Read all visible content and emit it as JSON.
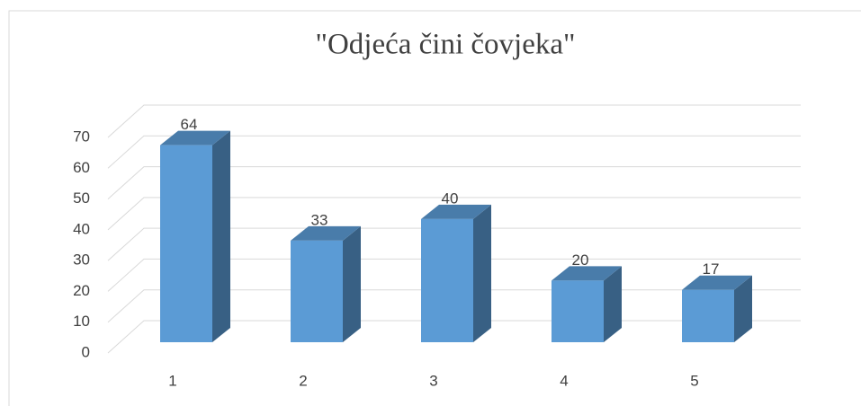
{
  "chart_data": {
    "type": "bar3d",
    "title": "\"Odjeća čini čovjeka\"",
    "categories": [
      "1",
      "2",
      "3",
      "4",
      "5"
    ],
    "values": [
      64,
      33,
      40,
      20,
      17
    ],
    "color": "#5b9bd5",
    "ylim": [
      0,
      70
    ],
    "yticks": [
      0,
      10,
      20,
      30,
      40,
      50,
      60,
      70
    ],
    "grid": true
  }
}
